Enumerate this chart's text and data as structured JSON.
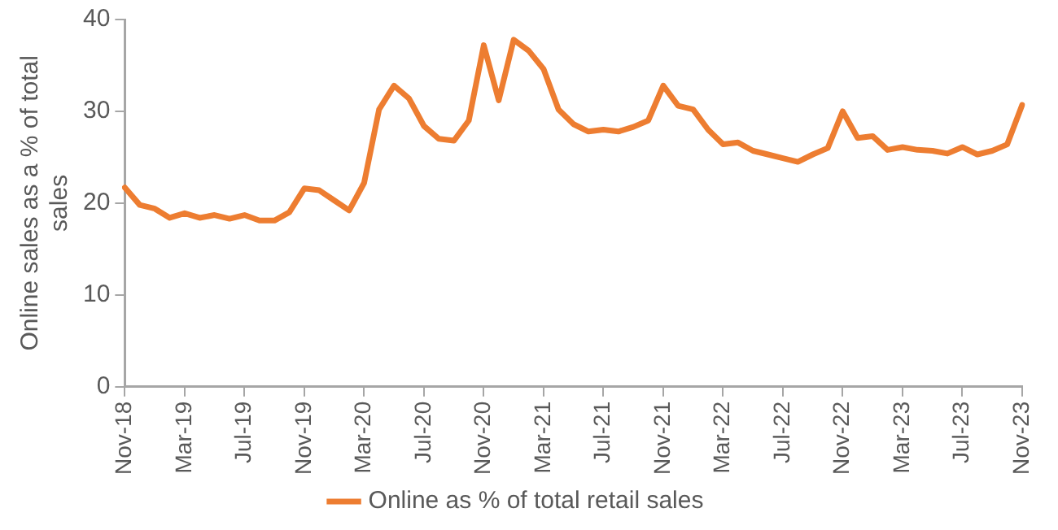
{
  "chart_data": {
    "type": "line",
    "ylabel": "Online sales as a % of total sales",
    "categories": [
      "Nov-18",
      null,
      null,
      null,
      "Mar-19",
      null,
      null,
      null,
      "Jul-19",
      null,
      null,
      null,
      "Nov-19",
      null,
      null,
      null,
      "Mar-20",
      null,
      null,
      null,
      "Jul-20",
      null,
      null,
      null,
      "Nov-20",
      null,
      null,
      null,
      "Mar-21",
      null,
      null,
      null,
      "Jul-21",
      null,
      null,
      null,
      "Nov-21",
      null,
      null,
      null,
      "Mar-22",
      null,
      null,
      null,
      "Jul-22",
      null,
      null,
      null,
      "Nov-22",
      null,
      null,
      null,
      "Mar-23",
      null,
      null,
      null,
      "Jul-23",
      null,
      null,
      null,
      "Nov-23"
    ],
    "series": [
      {
        "name": "Online as % of total retail sales",
        "color": "#ed7d31",
        "values": [
          21.7,
          19.8,
          19.4,
          18.4,
          18.9,
          18.4,
          18.7,
          18.3,
          18.7,
          18.1,
          18.1,
          19.0,
          21.6,
          21.4,
          20.3,
          19.2,
          22.2,
          30.2,
          32.8,
          31.4,
          28.4,
          27.0,
          26.8,
          29.0,
          37.2,
          31.2,
          37.8,
          36.6,
          34.6,
          30.2,
          28.6,
          27.8,
          28.0,
          27.8,
          28.3,
          29.0,
          32.8,
          30.6,
          30.2,
          28.0,
          26.4,
          26.6,
          25.7,
          25.3,
          24.9,
          24.5,
          25.3,
          26.0,
          30.0,
          27.1,
          27.3,
          25.8,
          26.1,
          25.8,
          25.7,
          25.4,
          26.1,
          25.3,
          25.7,
          26.4,
          30.7
        ]
      }
    ],
    "ylim": [
      0,
      40
    ],
    "yticks": [
      0,
      10,
      20,
      30,
      40
    ],
    "grid": false,
    "legend": "bottom",
    "marker": "none",
    "line_style": "solid"
  }
}
